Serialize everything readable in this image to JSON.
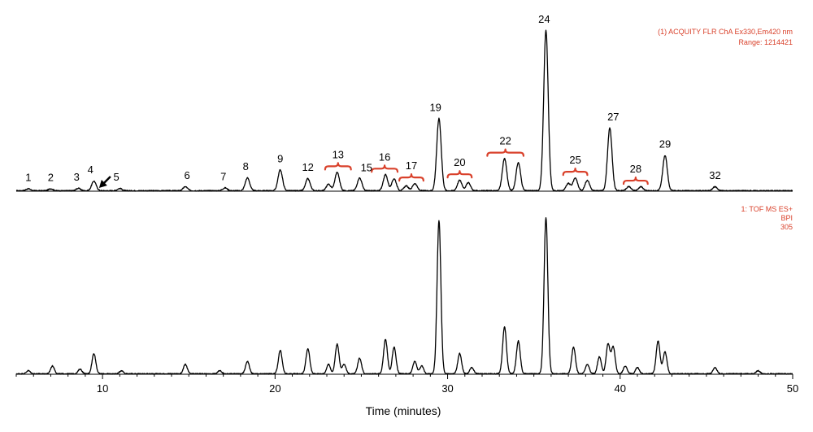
{
  "chart_data": {
    "type": "line",
    "xlabel": "Time (minutes)",
    "xlim": [
      5,
      50
    ],
    "x_ticks": [
      10,
      20,
      30,
      40,
      50
    ],
    "colors": {
      "trace": "#000000",
      "annotation": "#d9412b"
    },
    "series": [
      {
        "id": "flr",
        "header": [
          "(1) ACQUITY FLR ChA Ex330,Em420 nm",
          "Range: 1214421"
        ],
        "peaks": [
          {
            "x": 5.7,
            "y": 0.012
          },
          {
            "x": 7.0,
            "y": 0.012
          },
          {
            "x": 8.6,
            "y": 0.015
          },
          {
            "x": 9.5,
            "y": 0.06
          },
          {
            "x": 11.0,
            "y": 0.014
          },
          {
            "x": 14.8,
            "y": 0.025
          },
          {
            "x": 17.1,
            "y": 0.018
          },
          {
            "x": 18.4,
            "y": 0.08
          },
          {
            "x": 20.3,
            "y": 0.13
          },
          {
            "x": 21.9,
            "y": 0.075
          },
          {
            "x": 23.1,
            "y": 0.04
          },
          {
            "x": 23.6,
            "y": 0.115
          },
          {
            "x": 24.9,
            "y": 0.08
          },
          {
            "x": 26.4,
            "y": 0.1
          },
          {
            "x": 26.9,
            "y": 0.075
          },
          {
            "x": 27.6,
            "y": 0.03
          },
          {
            "x": 28.1,
            "y": 0.045
          },
          {
            "x": 29.5,
            "y": 0.45
          },
          {
            "x": 30.7,
            "y": 0.065
          },
          {
            "x": 31.2,
            "y": 0.05
          },
          {
            "x": 33.3,
            "y": 0.2
          },
          {
            "x": 34.1,
            "y": 0.175
          },
          {
            "x": 35.7,
            "y": 1.0
          },
          {
            "x": 37.0,
            "y": 0.045
          },
          {
            "x": 37.4,
            "y": 0.08
          },
          {
            "x": 38.1,
            "y": 0.065
          },
          {
            "x": 39.4,
            "y": 0.39
          },
          {
            "x": 40.5,
            "y": 0.025
          },
          {
            "x": 41.2,
            "y": 0.025
          },
          {
            "x": 42.6,
            "y": 0.22
          },
          {
            "x": 45.5,
            "y": 0.025
          }
        ]
      },
      {
        "id": "ms",
        "header": [
          "1: TOF MS ES+",
          "BPI",
          "305"
        ],
        "peaks": [
          {
            "x": 5.7,
            "y": 0.02
          },
          {
            "x": 7.1,
            "y": 0.05
          },
          {
            "x": 8.7,
            "y": 0.03
          },
          {
            "x": 9.5,
            "y": 0.13
          },
          {
            "x": 11.1,
            "y": 0.02
          },
          {
            "x": 14.8,
            "y": 0.06
          },
          {
            "x": 16.8,
            "y": 0.02
          },
          {
            "x": 18.4,
            "y": 0.08
          },
          {
            "x": 20.3,
            "y": 0.15
          },
          {
            "x": 21.9,
            "y": 0.16
          },
          {
            "x": 23.1,
            "y": 0.06
          },
          {
            "x": 23.6,
            "y": 0.19
          },
          {
            "x": 24.0,
            "y": 0.06
          },
          {
            "x": 24.9,
            "y": 0.1
          },
          {
            "x": 26.4,
            "y": 0.22
          },
          {
            "x": 26.9,
            "y": 0.17
          },
          {
            "x": 28.1,
            "y": 0.08
          },
          {
            "x": 28.5,
            "y": 0.05
          },
          {
            "x": 29.5,
            "y": 0.98
          },
          {
            "x": 30.7,
            "y": 0.13
          },
          {
            "x": 31.4,
            "y": 0.04
          },
          {
            "x": 33.3,
            "y": 0.3
          },
          {
            "x": 34.1,
            "y": 0.21
          },
          {
            "x": 35.7,
            "y": 1.0
          },
          {
            "x": 37.3,
            "y": 0.17
          },
          {
            "x": 38.1,
            "y": 0.06
          },
          {
            "x": 38.8,
            "y": 0.11
          },
          {
            "x": 39.3,
            "y": 0.19
          },
          {
            "x": 39.6,
            "y": 0.17
          },
          {
            "x": 40.3,
            "y": 0.05
          },
          {
            "x": 41.0,
            "y": 0.04
          },
          {
            "x": 42.2,
            "y": 0.21
          },
          {
            "x": 42.6,
            "y": 0.14
          },
          {
            "x": 45.5,
            "y": 0.04
          },
          {
            "x": 48.0,
            "y": 0.02
          }
        ]
      }
    ],
    "peak_labels": [
      {
        "text": "1",
        "x": 5.7,
        "series": "flr"
      },
      {
        "text": "2",
        "x": 7.0,
        "series": "flr"
      },
      {
        "text": "3",
        "x": 8.5,
        "series": "flr"
      },
      {
        "text": "4",
        "x": 9.3,
        "series": "flr"
      },
      {
        "text": "5",
        "x": 10.8,
        "series": "flr"
      },
      {
        "text": "6",
        "x": 14.9,
        "series": "flr"
      },
      {
        "text": "7",
        "x": 17.0,
        "series": "flr"
      },
      {
        "text": "8",
        "x": 18.3,
        "series": "flr"
      },
      {
        "text": "9",
        "x": 20.3,
        "series": "flr"
      },
      {
        "text": "12",
        "x": 21.9,
        "series": "flr"
      },
      {
        "text": "13",
        "x": 23.6,
        "series": "flr"
      },
      {
        "text": "15",
        "x": 25.3,
        "series": "flr"
      },
      {
        "text": "16",
        "x": 26.6,
        "series": "flr"
      },
      {
        "text": "17",
        "x": 28.0,
        "series": "flr"
      },
      {
        "text": "19",
        "x": 29.3,
        "series": "flr"
      },
      {
        "text": "20",
        "x": 30.7,
        "series": "flr"
      },
      {
        "text": "22",
        "x": 33.3,
        "series": "flr"
      },
      {
        "text": "24",
        "x": 35.6,
        "series": "flr"
      },
      {
        "text": "25",
        "x": 37.4,
        "series": "flr"
      },
      {
        "text": "27",
        "x": 39.6,
        "series": "flr"
      },
      {
        "text": "28",
        "x": 40.8,
        "series": "flr"
      },
      {
        "text": "29",
        "x": 42.6,
        "series": "flr"
      },
      {
        "text": "32",
        "x": 45.5,
        "series": "flr"
      }
    ],
    "brackets": [
      {
        "x1": 22.9,
        "x2": 24.4,
        "label": "13"
      },
      {
        "x1": 25.6,
        "x2": 27.1,
        "label": "16"
      },
      {
        "x1": 27.2,
        "x2": 28.6,
        "label": "17"
      },
      {
        "x1": 30.0,
        "x2": 31.4,
        "label": "20"
      },
      {
        "x1": 32.3,
        "x2": 34.4,
        "label": "22"
      },
      {
        "x1": 36.7,
        "x2": 38.1,
        "label": "25"
      },
      {
        "x1": 40.2,
        "x2": 41.6,
        "label": "28"
      }
    ],
    "arrow": {
      "points_to_x": 9.8,
      "series": "flr"
    }
  }
}
